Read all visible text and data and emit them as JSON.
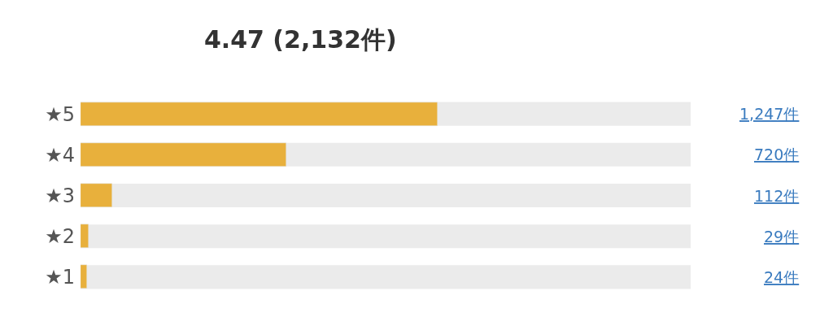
{
  "chart_data": {
    "type": "bar",
    "orientation": "horizontal",
    "title": "4.47 (2,132件)",
    "categories": [
      "★5",
      "★4",
      "★3",
      "★2",
      "★1"
    ],
    "values": [
      1247,
      720,
      112,
      29,
      24
    ],
    "value_labels": [
      "1,247件",
      "720件",
      "112件",
      "29件",
      "24件"
    ],
    "color": "#e8b03c",
    "xlim": [
      0,
      2132
    ],
    "tick_labels": "y"
  }
}
